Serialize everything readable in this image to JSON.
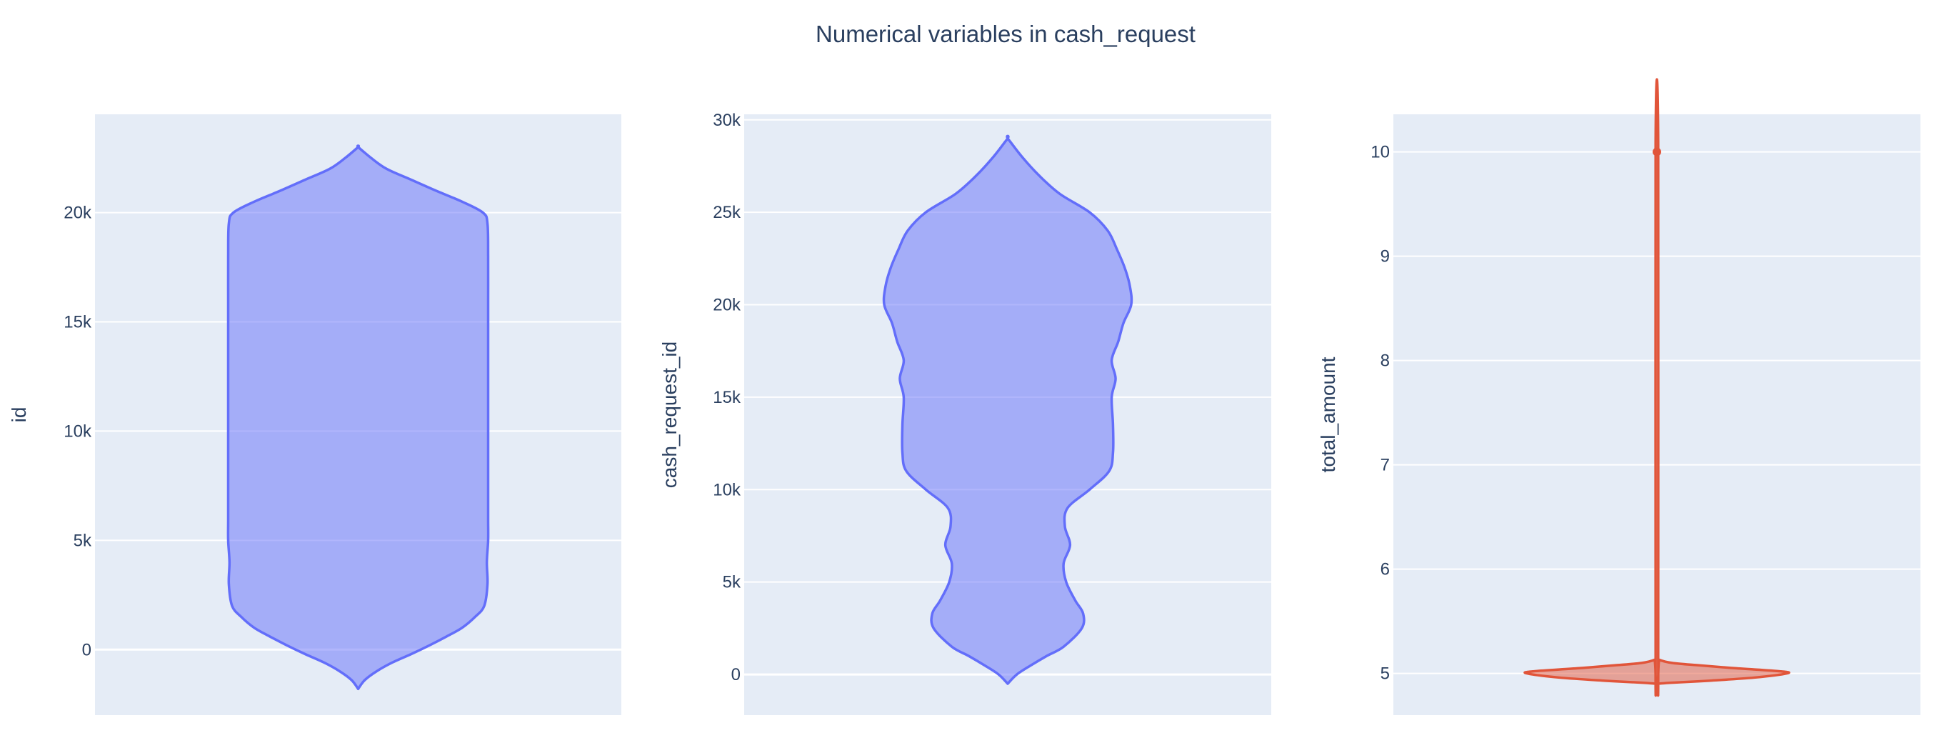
{
  "title": "Numerical variables in cash_request",
  "colors": {
    "plot_bg": "#e5ecf6",
    "grid": "#ffffff",
    "text": "#2a3f5f",
    "blue_line": "#636efa",
    "red_line": "#e1553a"
  },
  "chart_data": [
    {
      "type": "violin",
      "ylabel": "id",
      "ylim": [
        -3000,
        24500
      ],
      "ticks": [
        0,
        5000,
        10000,
        15000,
        20000
      ],
      "tick_labels": [
        "0",
        "5k",
        "10k",
        "15k",
        "20k"
      ],
      "color": "#636efa",
      "fill": "rgba(99,110,250,0.5)",
      "max_half_width": 1,
      "profile": [
        [
          -1800,
          0.0
        ],
        [
          -1400,
          0.05
        ],
        [
          -1000,
          0.14
        ],
        [
          -600,
          0.26
        ],
        [
          -200,
          0.41
        ],
        [
          200,
          0.55
        ],
        [
          600,
          0.68
        ],
        [
          1000,
          0.8
        ],
        [
          1500,
          0.9
        ],
        [
          2000,
          0.97
        ],
        [
          3000,
          0.995
        ],
        [
          4000,
          0.99
        ],
        [
          5000,
          1.0
        ],
        [
          6000,
          1.0
        ],
        [
          8000,
          1.0
        ],
        [
          10000,
          1.0
        ],
        [
          12000,
          1.0
        ],
        [
          14000,
          1.0
        ],
        [
          16000,
          1.0
        ],
        [
          18000,
          1.0
        ],
        [
          19500,
          0.995
        ],
        [
          20000,
          0.96
        ],
        [
          20500,
          0.8
        ],
        [
          21000,
          0.6
        ],
        [
          21500,
          0.41
        ],
        [
          22000,
          0.22
        ],
        [
          22500,
          0.1
        ],
        [
          23000,
          0.0
        ]
      ]
    },
    {
      "type": "violin",
      "ylabel": "cash_request_id",
      "ylim": [
        -2200,
        30300
      ],
      "ticks": [
        0,
        5000,
        10000,
        15000,
        20000,
        25000,
        30000
      ],
      "tick_labels": [
        "0",
        "5k",
        "10k",
        "15k",
        "20k",
        "25k",
        "30k"
      ],
      "color": "#636efa",
      "fill": "rgba(99,110,250,0.5)",
      "max_half_width": 1,
      "profile": [
        [
          -500,
          0.0
        ],
        [
          0,
          0.07
        ],
        [
          500,
          0.18
        ],
        [
          1000,
          0.3
        ],
        [
          1500,
          0.43
        ],
        [
          2500,
          0.57
        ],
        [
          3300,
          0.58
        ],
        [
          4000,
          0.52
        ],
        [
          5000,
          0.45
        ],
        [
          6000,
          0.43
        ],
        [
          7000,
          0.48
        ],
        [
          8000,
          0.44
        ],
        [
          9000,
          0.46
        ],
        [
          10000,
          0.63
        ],
        [
          11000,
          0.78
        ],
        [
          12000,
          0.81
        ],
        [
          13500,
          0.81
        ],
        [
          15000,
          0.8
        ],
        [
          16000,
          0.83
        ],
        [
          17000,
          0.8
        ],
        [
          18000,
          0.85
        ],
        [
          19000,
          0.89
        ],
        [
          20000,
          0.95
        ],
        [
          21000,
          0.94
        ],
        [
          22000,
          0.9
        ],
        [
          23000,
          0.84
        ],
        [
          24000,
          0.77
        ],
        [
          25000,
          0.63
        ],
        [
          26000,
          0.4
        ],
        [
          27000,
          0.24
        ],
        [
          28000,
          0.11
        ],
        [
          29000,
          0.0
        ]
      ]
    },
    {
      "type": "violin",
      "ylabel": "total_amount",
      "ylim": [
        4.6,
        10.36
      ],
      "ticks": [
        5,
        6,
        7,
        8,
        9,
        10
      ],
      "tick_labels": [
        "5",
        "6",
        "7",
        "8",
        "9",
        "10"
      ],
      "color": "#e1553a",
      "fill": "rgba(225,85,58,0.5)",
      "max_half_width": 1,
      "profile": [
        [
          4.9,
          0.0
        ],
        [
          4.91,
          0.1
        ],
        [
          4.93,
          0.4
        ],
        [
          4.96,
          0.75
        ],
        [
          5.0,
          1.0
        ],
        [
          5.02,
          0.95
        ],
        [
          5.05,
          0.6
        ],
        [
          5.08,
          0.3
        ],
        [
          5.1,
          0.12
        ],
        [
          5.13,
          0.02
        ],
        [
          5.16,
          0.01
        ],
        [
          10.08,
          0.01
        ]
      ],
      "outlier": 10.0
    }
  ]
}
